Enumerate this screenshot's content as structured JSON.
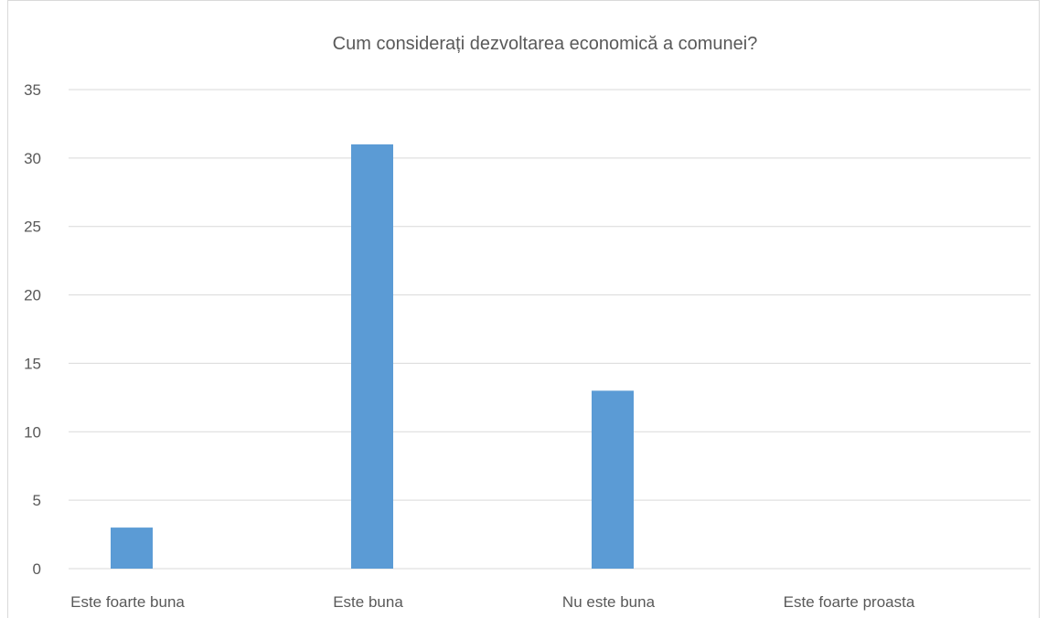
{
  "chart_data": {
    "type": "bar",
    "title": "Cum considerați dezvoltarea economică a comunei?",
    "categories": [
      "Este foarte buna",
      "Este buna",
      "Nu este buna",
      "Este foarte proasta"
    ],
    "values": [
      3,
      31,
      13,
      0
    ],
    "ylim": [
      0,
      35
    ],
    "yticks": [
      0,
      5,
      10,
      15,
      20,
      25,
      30,
      35
    ],
    "grid": true,
    "legend": "none",
    "bar_color": "#5b9bd5",
    "grid_color": "#d9d9d9",
    "text_color": "#595959"
  }
}
